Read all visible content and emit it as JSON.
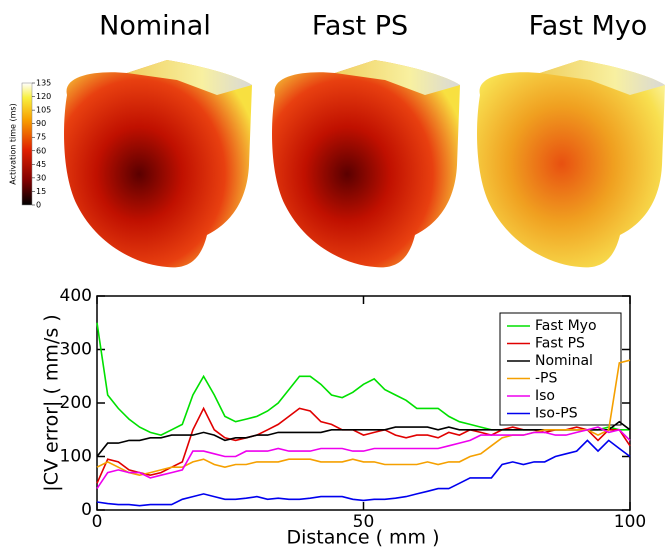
{
  "figure": {
    "panel_titles": [
      "Nominal",
      "Fast PS",
      "Fast Myo"
    ],
    "colorbar": {
      "label": "Activation time (ms)",
      "lim": [
        0,
        135
      ],
      "ticks": [
        0,
        15,
        30,
        45,
        60,
        75,
        90,
        105,
        120,
        135
      ]
    }
  },
  "chart_data": {
    "type": "line",
    "x_label": "Distance ( mm )",
    "y_label": "|CV error| ( mm/s )",
    "xlim": [
      0,
      100
    ],
    "ylim": [
      0,
      400
    ],
    "xticks": [
      0,
      50,
      100
    ],
    "yticks": [
      0,
      100,
      200,
      300,
      400
    ],
    "grid": false,
    "legend": "upper right",
    "x": [
      0,
      2,
      4,
      6,
      8,
      10,
      12,
      14,
      16,
      18,
      20,
      22,
      24,
      26,
      28,
      30,
      32,
      34,
      36,
      38,
      40,
      42,
      44,
      46,
      48,
      50,
      52,
      54,
      56,
      58,
      60,
      62,
      64,
      66,
      68,
      70,
      72,
      74,
      76,
      78,
      80,
      82,
      84,
      86,
      88,
      90,
      92,
      94,
      96,
      98,
      100
    ],
    "series": [
      {
        "name": "Fast Myo",
        "color": "#00e000",
        "values": [
          350,
          215,
          190,
          170,
          155,
          145,
          140,
          150,
          160,
          215,
          250,
          215,
          175,
          165,
          170,
          175,
          185,
          200,
          225,
          250,
          250,
          235,
          215,
          210,
          220,
          235,
          245,
          225,
          215,
          205,
          190,
          190,
          190,
          175,
          165,
          160,
          155,
          150,
          150,
          150,
          150,
          150,
          150,
          150,
          150,
          150,
          150,
          150,
          155,
          150,
          150
        ]
      },
      {
        "name": "Fast PS",
        "color": "#e00000",
        "values": [
          50,
          95,
          90,
          75,
          70,
          65,
          70,
          80,
          90,
          150,
          190,
          150,
          135,
          130,
          135,
          140,
          150,
          160,
          175,
          190,
          185,
          165,
          160,
          150,
          150,
          140,
          145,
          150,
          140,
          135,
          140,
          140,
          135,
          145,
          140,
          150,
          145,
          140,
          150,
          155,
          150,
          150,
          145,
          150,
          150,
          155,
          150,
          130,
          150,
          150,
          120
        ]
      },
      {
        "name": "Nominal",
        "color": "#000000",
        "values": [
          100,
          125,
          125,
          130,
          130,
          135,
          135,
          140,
          140,
          140,
          145,
          140,
          130,
          135,
          135,
          140,
          140,
          145,
          145,
          145,
          145,
          145,
          150,
          150,
          150,
          150,
          150,
          150,
          155,
          155,
          155,
          155,
          150,
          155,
          150,
          150,
          150,
          150,
          150,
          150,
          150,
          150,
          150,
          150,
          150,
          150,
          150,
          150,
          150,
          165,
          150
        ]
      },
      {
        "name": "-PS",
        "color": "#f5a000",
        "values": [
          80,
          90,
          80,
          70,
          65,
          70,
          75,
          80,
          80,
          90,
          95,
          85,
          80,
          85,
          85,
          90,
          90,
          90,
          95,
          95,
          95,
          90,
          90,
          90,
          95,
          90,
          90,
          85,
          85,
          85,
          85,
          90,
          85,
          90,
          90,
          100,
          105,
          120,
          135,
          140,
          140,
          145,
          150,
          150,
          150,
          150,
          150,
          140,
          150,
          275,
          280
        ]
      },
      {
        "name": "Iso",
        "color": "#ee00ee",
        "values": [
          40,
          70,
          75,
          70,
          70,
          60,
          65,
          70,
          75,
          110,
          110,
          105,
          100,
          100,
          110,
          110,
          110,
          115,
          110,
          110,
          110,
          115,
          115,
          115,
          110,
          110,
          115,
          115,
          115,
          115,
          115,
          115,
          115,
          120,
          125,
          130,
          140,
          140,
          140,
          140,
          140,
          145,
          145,
          140,
          140,
          145,
          150,
          155,
          145,
          150,
          130
        ]
      },
      {
        "name": "Iso-PS",
        "color": "#0000ee",
        "values": [
          15,
          12,
          10,
          10,
          8,
          10,
          10,
          10,
          20,
          25,
          30,
          25,
          20,
          20,
          22,
          25,
          20,
          22,
          20,
          20,
          22,
          25,
          25,
          25,
          20,
          18,
          20,
          20,
          22,
          25,
          30,
          35,
          40,
          40,
          50,
          60,
          60,
          60,
          85,
          90,
          85,
          90,
          90,
          100,
          105,
          110,
          130,
          110,
          130,
          115,
          100
        ]
      }
    ]
  }
}
